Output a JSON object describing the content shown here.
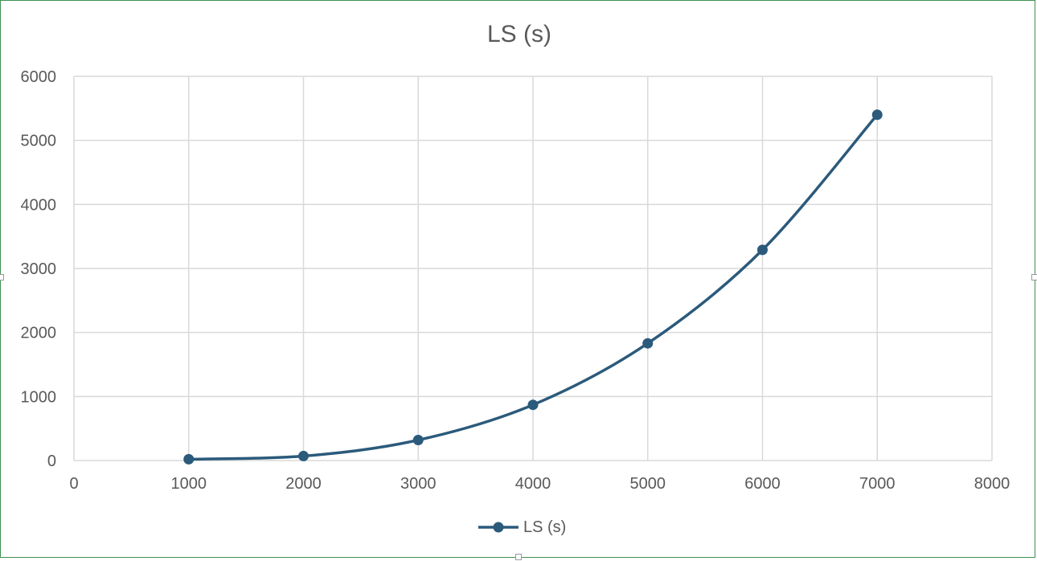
{
  "chart_data": {
    "type": "scatter",
    "title": "LS (s)",
    "xlabel": "",
    "ylabel": "",
    "xlim": [
      0,
      8000
    ],
    "ylim": [
      0,
      6000
    ],
    "x_ticks": [
      0,
      1000,
      2000,
      3000,
      4000,
      5000,
      6000,
      7000,
      8000
    ],
    "y_ticks": [
      0,
      1000,
      2000,
      3000,
      4000,
      5000,
      6000
    ],
    "grid": true,
    "legend_position": "bottom",
    "smooth_line": true,
    "series": [
      {
        "name": "LS (s)",
        "color": "#2b5a7b",
        "x": [
          1000,
          2000,
          3000,
          4000,
          5000,
          6000,
          7000
        ],
        "y": [
          20,
          70,
          320,
          870,
          1830,
          3290,
          5400
        ]
      }
    ]
  }
}
